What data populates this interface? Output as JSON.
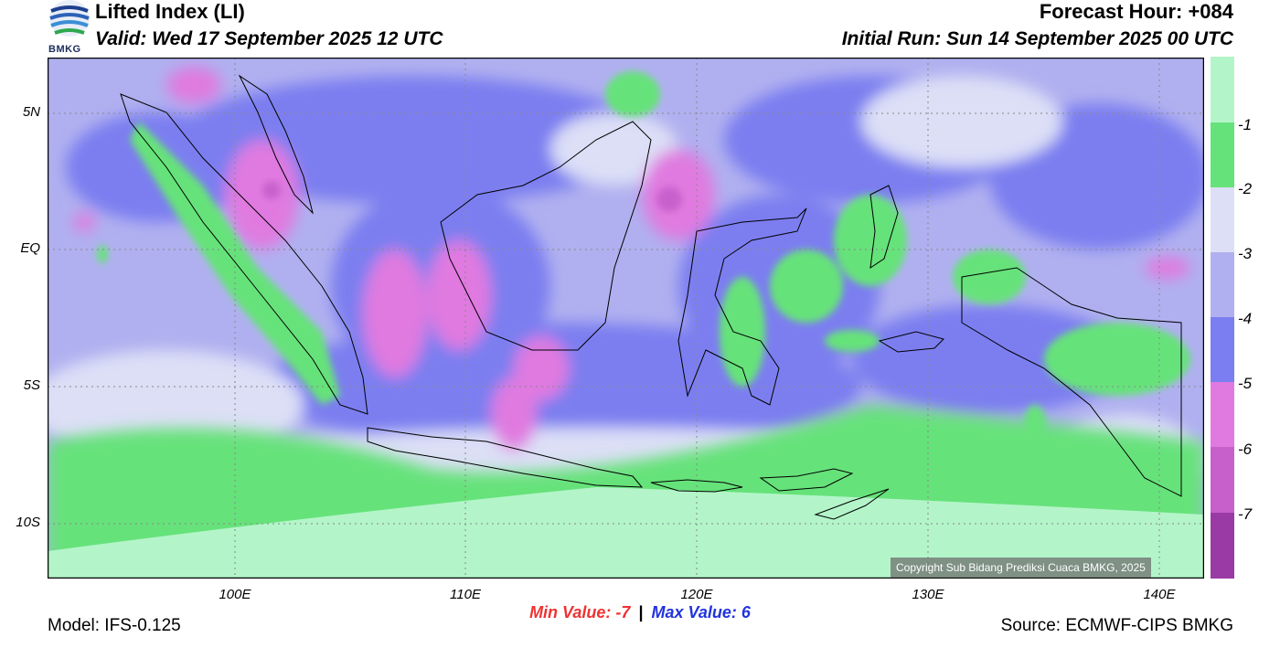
{
  "header": {
    "title": "Lifted Index (LI)",
    "valid": "Valid: Wed 17 September 2025 12 UTC",
    "forecast_hour": "Forecast Hour: +084",
    "initial_run": "Initial Run: Sun 14 September 2025 00 UTC"
  },
  "logo": {
    "text": "BMKG"
  },
  "axes": {
    "y_ticks": [
      "5N",
      "EQ",
      "5S",
      "10S"
    ],
    "x_ticks": [
      "100E",
      "110E",
      "120E",
      "130E",
      "140E"
    ]
  },
  "colorbar": {
    "labels": [
      "-1",
      "-2",
      "-3",
      "-4",
      "-5",
      "-6",
      "-7"
    ],
    "colors": [
      "#b3f5c9",
      "#66e27a",
      "#dcdff6",
      "#b0b0f0",
      "#7b7ef0",
      "#e07ae0",
      "#c860cc",
      "#9a3aa4"
    ]
  },
  "copyright": "Copyright Sub Bidang Prediksi Cuaca BMKG, 2025",
  "stats": {
    "min_label": "Min Value:",
    "min_value": "-7",
    "separator": "|",
    "max_label": "Max Value:",
    "max_value": "6"
  },
  "footer": {
    "model": "Model: IFS-0.125",
    "source": "Source: ECMWF-CIPS BMKG"
  }
}
